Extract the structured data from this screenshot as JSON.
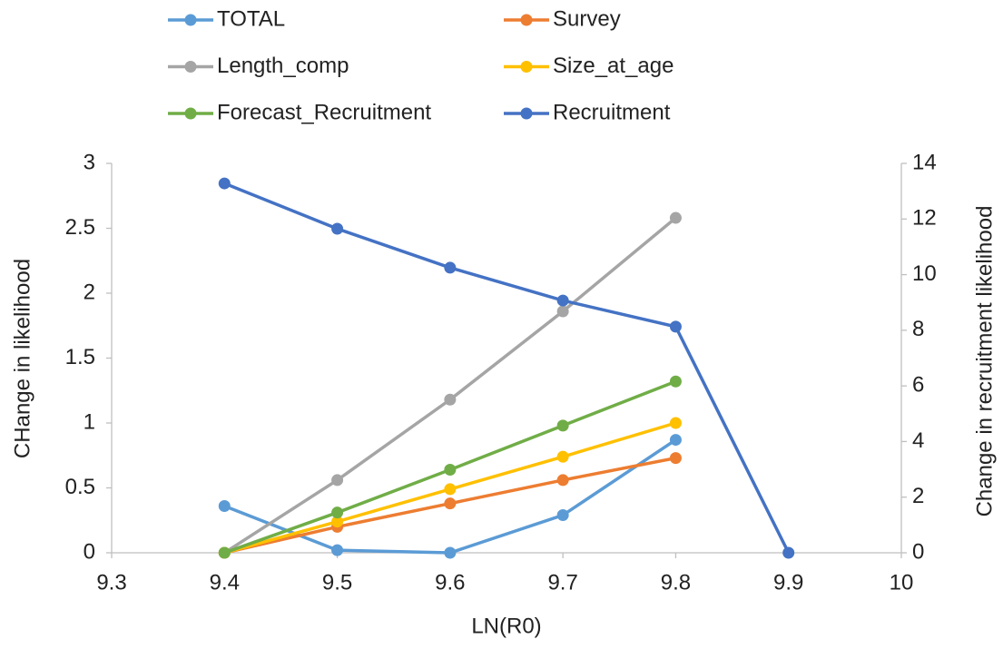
{
  "chart_data": {
    "type": "line",
    "x_label": "LN(R0)",
    "y_label": "CHange in likelihood",
    "y2_label": "Change in recruitment likelihood",
    "x": [
      9.4,
      9.5,
      9.6,
      9.7,
      9.8,
      9.9
    ],
    "xlim": [
      9.3,
      10
    ],
    "xticks": [
      9.3,
      9.4,
      9.5,
      9.6,
      9.7,
      9.8,
      9.9,
      10
    ],
    "ylim": [
      0,
      3
    ],
    "yticks": [
      0,
      0.5,
      1,
      1.5,
      2,
      2.5,
      3
    ],
    "y2lim": [
      0,
      14
    ],
    "y2ticks": [
      0,
      2,
      4,
      6,
      8,
      10,
      12,
      14
    ],
    "grid": false,
    "legend": "top",
    "series": [
      {
        "name": "TOTAL",
        "color": "#5b9bd5",
        "values": [
          0.36,
          0.02,
          0.0,
          0.29,
          0.87,
          null
        ]
      },
      {
        "name": "Survey",
        "color": "#ed7d31",
        "values": [
          0,
          0.2,
          0.38,
          0.56,
          0.73,
          null
        ]
      },
      {
        "name": "Length_comp",
        "color": "#a5a5a5",
        "values": [
          0,
          0.56,
          1.18,
          1.86,
          2.58,
          null
        ]
      },
      {
        "name": "Size_at_age",
        "color": "#ffc000",
        "values": [
          0,
          0.24,
          0.49,
          0.74,
          1.0,
          null
        ]
      },
      {
        "name": "Forecast_Recruitment",
        "color": "#70ad47",
        "values": [
          0,
          0.31,
          0.64,
          0.98,
          1.32,
          null
        ]
      },
      {
        "name": "Recruitment",
        "color": "#4472c4",
        "axis": "y2",
        "values": [
          13.28,
          11.65,
          10.25,
          9.07,
          8.13,
          0
        ]
      }
    ]
  }
}
